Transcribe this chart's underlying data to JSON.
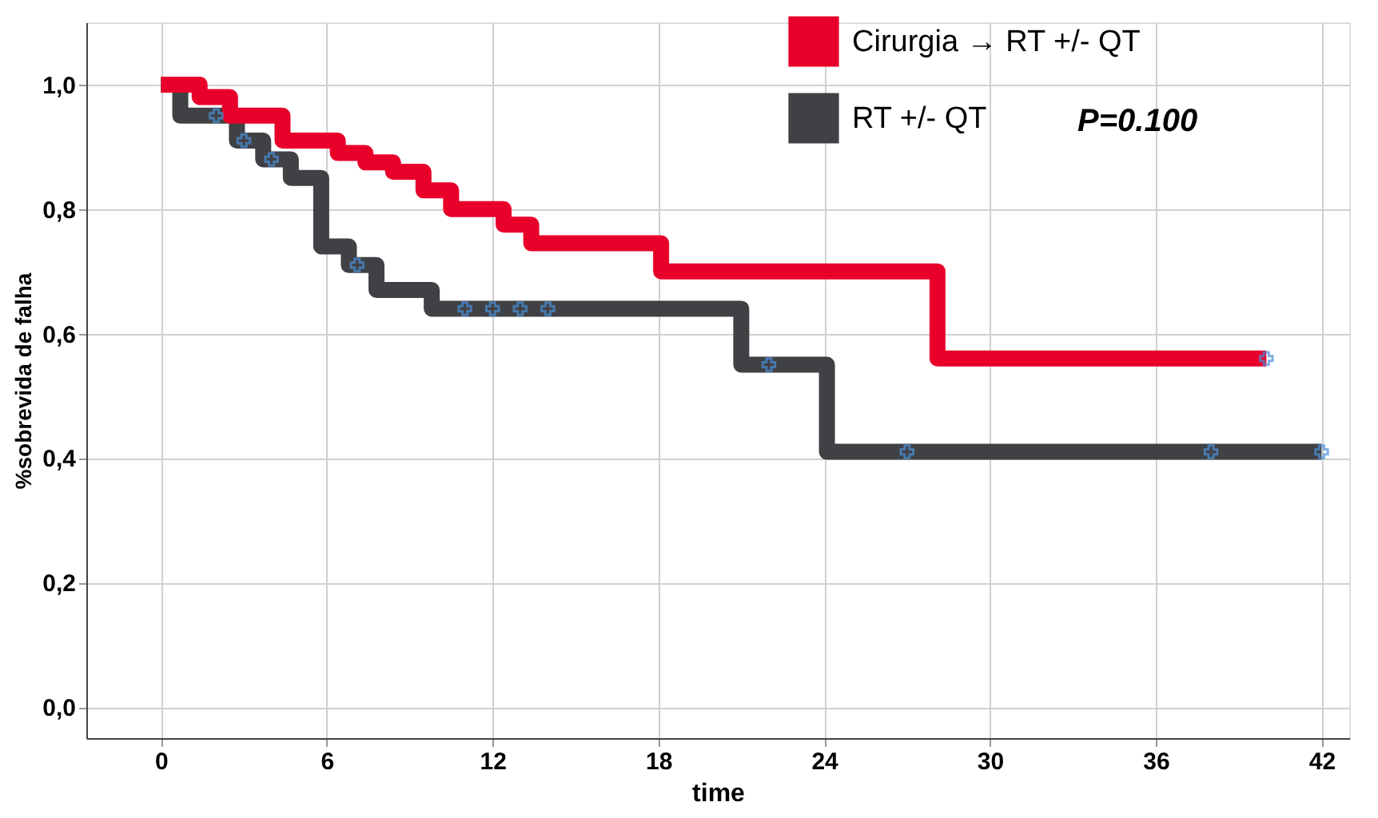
{
  "chart_data": {
    "type": "step",
    "xlabel": "time",
    "ylabel": "%sobrevida de falha",
    "xlim": [
      -2.7,
      43
    ],
    "xticks": [
      0,
      6,
      12,
      18,
      24,
      30,
      36,
      42
    ],
    "ylim": [
      -0.05,
      1.1
    ],
    "yticks": [
      {
        "value": 0,
        "label": "0,0"
      },
      {
        "value": 0.2,
        "label": "0,2"
      },
      {
        "value": 0.4,
        "label": "0,4"
      },
      {
        "value": 0.6,
        "label": "0,6"
      },
      {
        "value": 0.8,
        "label": "0,8"
      },
      {
        "value": 1.0,
        "label": "1,0"
      }
    ],
    "grid": true,
    "legend": "top right",
    "annotations": [
      "P=0.100"
    ],
    "series": [
      {
        "name": "Cirurgia → RT +/- QT",
        "color": "#e8002a",
        "x": [
          0,
          1.4,
          2.5,
          4.4,
          6.4,
          7.4,
          8.4,
          9.5,
          10.5,
          12.4,
          13.4,
          18.1,
          28.1,
          40
        ],
        "values": [
          1.0,
          0.98,
          0.95,
          0.91,
          0.89,
          0.875,
          0.86,
          0.83,
          0.8,
          0.775,
          0.745,
          0.7,
          0.56,
          0.56
        ]
      },
      {
        "name": "RT +/- QT",
        "color": "#404144",
        "x": [
          0,
          0.7,
          2.75,
          3.7,
          4.7,
          5.8,
          6.8,
          7.8,
          9.8,
          21.0,
          24.1,
          42
        ],
        "values": [
          1.0,
          0.95,
          0.91,
          0.88,
          0.85,
          0.74,
          0.71,
          0.67,
          0.64,
          0.55,
          0.41,
          0.41
        ]
      },
      {
        "type": "scatter",
        "marker": "cross",
        "color": "#4a90d9",
        "x": [
          2,
          3,
          4,
          7.1,
          11,
          12,
          13,
          14,
          22,
          27,
          38,
          42,
          40
        ],
        "values": [
          0.95,
          0.91,
          0.88,
          0.71,
          0.64,
          0.64,
          0.64,
          0.64,
          0.55,
          0.41,
          0.41,
          0.41,
          0.56
        ]
      }
    ]
  }
}
